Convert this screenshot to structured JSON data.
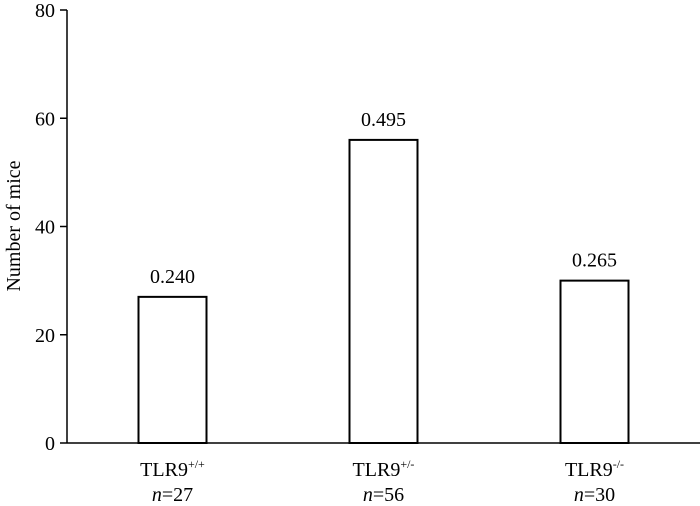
{
  "chart_data": {
    "type": "bar",
    "y_label": "Number of mice",
    "categories": [
      "TLR9+/+",
      "TLR9+/-",
      "TLR9-/-"
    ],
    "sample_labels": [
      "n=27",
      "n=56",
      "n=30"
    ],
    "values": [
      27,
      56,
      30
    ],
    "annotations": [
      "0.240",
      "0.495",
      "0.265"
    ],
    "color": "#ffffff",
    "ylim": [
      0,
      80
    ],
    "yticks": [
      0,
      20,
      40,
      60,
      80
    ],
    "grid": false
  }
}
